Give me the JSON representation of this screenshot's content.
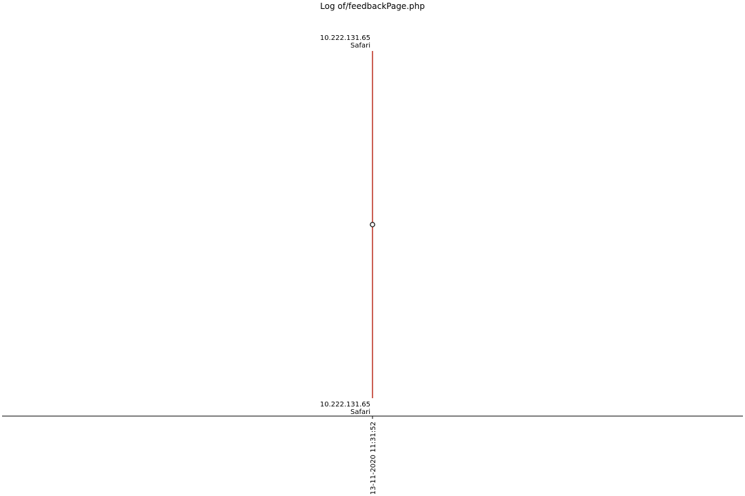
{
  "chart_data": {
    "type": "line",
    "title": "Log of/feedbackPage.php",
    "xlabel": "",
    "ylabel": "",
    "x_tick_labels": [
      "13-11-2020 11:31:52"
    ],
    "series": [
      {
        "x": [
          "13-11-2020 11:31:52",
          "13-11-2020 11:31:52"
        ],
        "y": [
          0,
          1
        ],
        "color": "#c0392b"
      }
    ],
    "markers": [
      {
        "x": "13-11-2020 11:31:52",
        "y": 0.5,
        "style": "hollow-circle"
      }
    ],
    "annotations": [
      {
        "lines": [
          "10.222.131.65",
          "Safari"
        ],
        "anchor": "top"
      },
      {
        "lines": [
          "10.222.131.65",
          "Safari"
        ],
        "anchor": "bottom"
      }
    ],
    "ylim": [
      0,
      1
    ],
    "grid": false,
    "y_axis_visible": false,
    "colors": {
      "line": "#c0392b",
      "axis": "#000000",
      "marker_fill": "#ffffff",
      "marker_edge": "#000000"
    }
  }
}
